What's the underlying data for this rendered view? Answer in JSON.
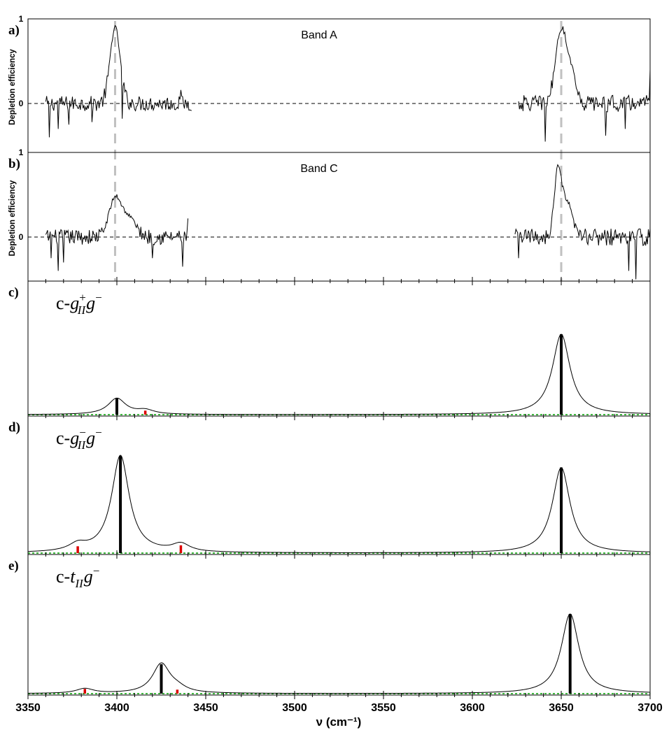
{
  "chart_data": {
    "type": "line",
    "x_axis": {
      "label": "ν (cm⁻¹)",
      "range": [
        3350,
        3700
      ],
      "ticks": [
        3350,
        3400,
        3450,
        3500,
        3550,
        3600,
        3650,
        3700
      ],
      "tick_labels": [
        "3350",
        "3400",
        "3450",
        "3500",
        "3550",
        "3600",
        "3650",
        "3700"
      ]
    },
    "reference_lines": [
      3399,
      3650
    ],
    "panels": [
      {
        "id": "a",
        "letter": "a)",
        "kind": "experimental",
        "label": "Band A",
        "ylabel": "Depletion efficiency",
        "yticks": [
          "1",
          "0"
        ],
        "ylim": [
          -0.45,
          1.0
        ],
        "segments": [
          {
            "x_range": [
              3360,
              3442
            ],
            "peaks": [
              {
                "x": 3399,
                "height": 0.9,
                "width": 2.8
              }
            ],
            "noise": 0.09,
            "extremes": [
              [
                3362,
                -0.4
              ],
              [
                3367,
                -0.3
              ],
              [
                3373,
                -0.25
              ],
              [
                3386,
                -0.22
              ],
              [
                3403,
                -0.18
              ],
              [
                3436,
                0.16
              ]
            ]
          },
          {
            "x_range": [
              3626,
              3700
            ],
            "peaks": [
              {
                "x": 3650,
                "height": 0.88,
                "width": 3.2
              },
              {
                "x": 3656,
                "height": 0.3,
                "width": 2.5
              }
            ],
            "noise": 0.1,
            "extremes": [
              [
                3641,
                -0.5
              ],
              [
                3675,
                -0.38
              ],
              [
                3686,
                -0.3
              ],
              [
                3700,
                0.4
              ]
            ]
          }
        ]
      },
      {
        "id": "b",
        "letter": "b)",
        "kind": "experimental",
        "label": "Band C",
        "ylabel": "Depletion efficiency",
        "yticks": [
          "1",
          "0"
        ],
        "ylim": [
          -0.5,
          1.0
        ],
        "segments": [
          {
            "x_range": [
              3360,
              3440
            ],
            "peaks": [
              {
                "x": 3399,
                "height": 0.45,
                "width": 3.5
              },
              {
                "x": 3407,
                "height": 0.22,
                "width": 4
              }
            ],
            "noise": 0.09,
            "extremes": [
              [
                3363,
                -0.25
              ],
              [
                3367,
                -0.4
              ],
              [
                3370,
                -0.3
              ],
              [
                3420,
                -0.25
              ],
              [
                3437,
                -0.35
              ],
              [
                3440,
                0.22
              ]
            ]
          },
          {
            "x_range": [
              3624,
              3700
            ],
            "peaks": [
              {
                "x": 3648,
                "height": 0.72,
                "width": 2.0
              },
              {
                "x": 3653,
                "height": 0.42,
                "width": 3.0
              }
            ],
            "noise": 0.1,
            "extremes": [
              [
                3626,
                -0.25
              ],
              [
                3688,
                -0.4
              ],
              [
                3692,
                -0.55
              ],
              [
                3700,
                0.1
              ]
            ]
          }
        ]
      },
      {
        "id": "c",
        "letter": "c)",
        "kind": "simulated",
        "conformer": {
          "prefix": "c-",
          "base": "g",
          "sup": "+",
          "sub": "II",
          "tail_base": "g",
          "tail_sup": "−"
        },
        "yrange": [
          0,
          1
        ],
        "lorentzian_hwhm": 6,
        "sticks": [
          {
            "x": 3400,
            "intensity": 0.2,
            "color": "#000000"
          },
          {
            "x": 3416,
            "intensity": 0.05,
            "color": "#dd0000"
          },
          {
            "x": 3650,
            "intensity": 1.0,
            "color": "#000000"
          }
        ]
      },
      {
        "id": "d",
        "letter": "d)",
        "kind": "simulated",
        "conformer": {
          "prefix": "c-",
          "base": "g",
          "sup": "−",
          "sub": "II",
          "tail_base": "g",
          "tail_sup": "−"
        },
        "yrange": [
          0,
          1
        ],
        "lorentzian_hwhm": 6,
        "sticks": [
          {
            "x": 3378,
            "intensity": 0.07,
            "color": "#dd0000"
          },
          {
            "x": 3402,
            "intensity": 1.0,
            "color": "#000000"
          },
          {
            "x": 3436,
            "intensity": 0.08,
            "color": "#dd0000"
          },
          {
            "x": 3650,
            "intensity": 0.88,
            "color": "#000000"
          }
        ]
      },
      {
        "id": "e",
        "letter": "e)",
        "kind": "simulated",
        "conformer": {
          "prefix": "c-",
          "base": "t",
          "sup": "",
          "sub": "II",
          "tail_base": "g",
          "tail_sup": "−"
        },
        "yrange": [
          0,
          1
        ],
        "lorentzian_hwhm": 6,
        "sticks": [
          {
            "x": 3382,
            "intensity": 0.06,
            "color": "#dd0000"
          },
          {
            "x": 3425,
            "intensity": 0.37,
            "color": "#000000"
          },
          {
            "x": 3434,
            "intensity": 0.05,
            "color": "#dd0000"
          },
          {
            "x": 3655,
            "intensity": 1.0,
            "color": "#000000"
          }
        ]
      }
    ],
    "colors": {
      "trace": "#000000",
      "reference": "#c0c0c0",
      "green_baseline": "#00a000",
      "red_stick": "#dd0000"
    }
  }
}
